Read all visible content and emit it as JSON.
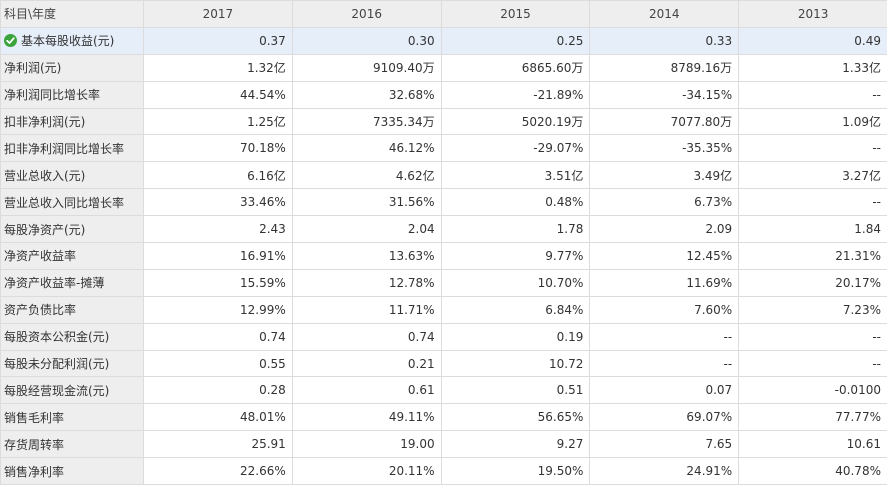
{
  "header": {
    "corner": "科目\\年度",
    "years": [
      "2017",
      "2016",
      "2015",
      "2014",
      "2013"
    ]
  },
  "rows": [
    {
      "label": "基本每股收益(元)",
      "values": [
        "0.37",
        "0.30",
        "0.25",
        "0.33",
        "0.49"
      ],
      "highlight": true
    },
    {
      "label": "净利润(元)",
      "values": [
        "1.32亿",
        "9109.40万",
        "6865.60万",
        "8789.16万",
        "1.33亿"
      ]
    },
    {
      "label": "净利润同比增长率",
      "values": [
        "44.54%",
        "32.68%",
        "-21.89%",
        "-34.15%",
        "--"
      ]
    },
    {
      "label": "扣非净利润(元)",
      "values": [
        "1.25亿",
        "7335.34万",
        "5020.19万",
        "7077.80万",
        "1.09亿"
      ]
    },
    {
      "label": "扣非净利润同比增长率",
      "values": [
        "70.18%",
        "46.12%",
        "-29.07%",
        "-35.35%",
        "--"
      ]
    },
    {
      "label": "营业总收入(元)",
      "values": [
        "6.16亿",
        "4.62亿",
        "3.51亿",
        "3.49亿",
        "3.27亿"
      ]
    },
    {
      "label": "营业总收入同比增长率",
      "values": [
        "33.46%",
        "31.56%",
        "0.48%",
        "6.73%",
        "--"
      ]
    },
    {
      "label": "每股净资产(元)",
      "values": [
        "2.43",
        "2.04",
        "1.78",
        "2.09",
        "1.84"
      ]
    },
    {
      "label": "净资产收益率",
      "values": [
        "16.91%",
        "13.63%",
        "9.77%",
        "12.45%",
        "21.31%"
      ]
    },
    {
      "label": "净资产收益率-摊薄",
      "values": [
        "15.59%",
        "12.78%",
        "10.70%",
        "11.69%",
        "20.17%"
      ]
    },
    {
      "label": "资产负债比率",
      "values": [
        "12.99%",
        "11.71%",
        "6.84%",
        "7.60%",
        "7.23%"
      ]
    },
    {
      "label": "每股资本公积金(元)",
      "values": [
        "0.74",
        "0.74",
        "0.19",
        "--",
        "--"
      ]
    },
    {
      "label": "每股未分配利润(元)",
      "values": [
        "0.55",
        "0.21",
        "10.72",
        "--",
        "--"
      ]
    },
    {
      "label": "每股经营现金流(元)",
      "values": [
        "0.28",
        "0.61",
        "0.51",
        "0.07",
        "-0.0100"
      ]
    },
    {
      "label": "销售毛利率",
      "values": [
        "48.01%",
        "49.11%",
        "56.65%",
        "69.07%",
        "77.77%"
      ]
    },
    {
      "label": "存货周转率",
      "values": [
        "25.91",
        "19.00",
        "9.27",
        "7.65",
        "10.61"
      ]
    },
    {
      "label": "销售净利率",
      "values": [
        "22.66%",
        "20.11%",
        "19.50%",
        "24.91%",
        "40.78%"
      ]
    }
  ],
  "icons": {
    "selected_row": "check-circle-icon"
  },
  "colors": {
    "check": "#3aa33a",
    "highlight": "#e6eef9",
    "header_bg": "#eeeeee"
  }
}
